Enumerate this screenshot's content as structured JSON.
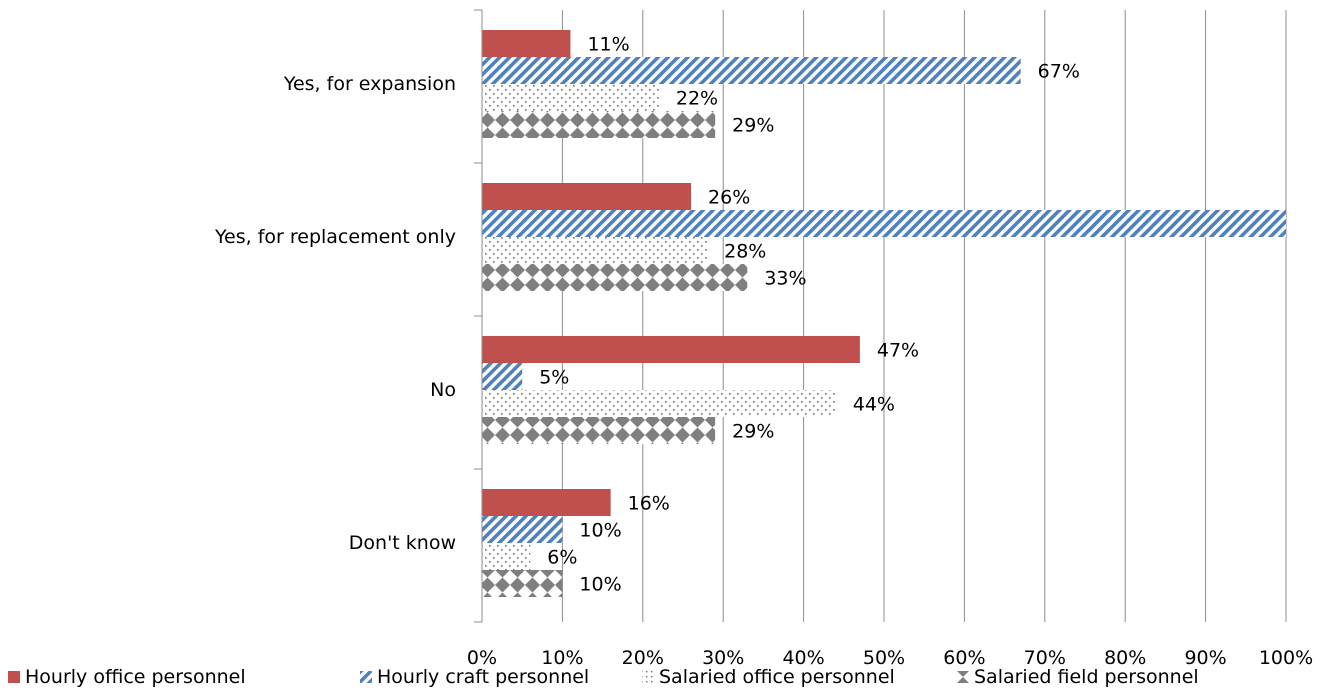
{
  "chart_data": {
    "type": "bar",
    "orientation": "horizontal",
    "categories": [
      "Yes, for expansion",
      "Yes, for replacement only",
      "No",
      "Don't know"
    ],
    "series": [
      {
        "name": "Hourly office personnel",
        "values": [
          11,
          26,
          47,
          16
        ],
        "labels": [
          "11%",
          "26%",
          "47%",
          "16%"
        ],
        "pattern": "solid",
        "color": "#C0504D"
      },
      {
        "name": "Hourly craft personnel",
        "values": [
          67,
          100,
          5,
          10
        ],
        "labels": [
          "67%",
          "",
          "5%",
          "10%"
        ],
        "pattern": "diagonal-stripes",
        "color": "#4F81BD"
      },
      {
        "name": "Salaried office personnel",
        "values": [
          22,
          28,
          44,
          6
        ],
        "labels": [
          "22%",
          "28%",
          "44%",
          "6%"
        ],
        "pattern": "dots",
        "color": "#7F7F7F"
      },
      {
        "name": "Salaried field personnel",
        "values": [
          29,
          33,
          29,
          10
        ],
        "labels": [
          "29%",
          "33%",
          "29%",
          "10%"
        ],
        "pattern": "diamonds",
        "color": "#7F7F7F"
      }
    ],
    "x_ticks": [
      "0%",
      "10%",
      "20%",
      "30%",
      "40%",
      "50%",
      "60%",
      "70%",
      "80%",
      "90%",
      "100%"
    ],
    "xlim": [
      0,
      100
    ],
    "grid": "vertical",
    "legend_position": "bottom"
  }
}
